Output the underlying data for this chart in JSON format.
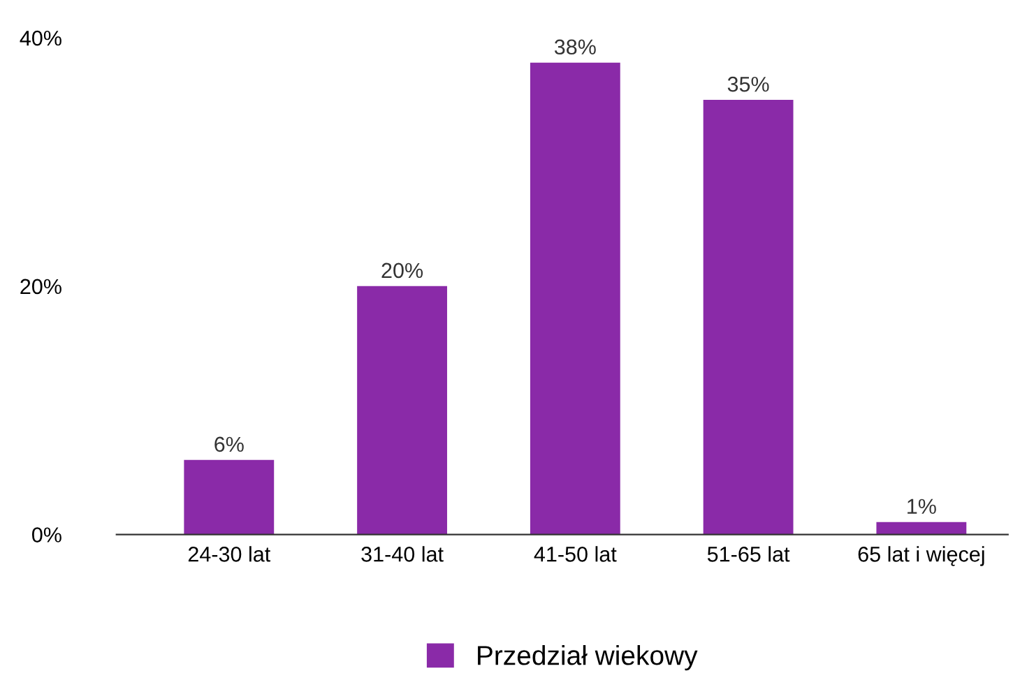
{
  "chart_data": {
    "type": "bar",
    "categories": [
      "24-30 lat",
      "31-40 lat",
      "41-50 lat",
      "51-65 lat",
      "65 lat i więcej"
    ],
    "series": [
      {
        "name": "Przedział wiekowy",
        "color": "#8a2aa8",
        "values": [
          6,
          20,
          38,
          35,
          1
        ]
      }
    ],
    "value_labels": [
      "6%",
      "20%",
      "38%",
      "35%",
      "1%"
    ],
    "ylim": [
      0,
      40
    ],
    "yticks": [
      {
        "value": 0,
        "label": "0%"
      },
      {
        "value": 20,
        "label": "20%"
      },
      {
        "value": 40,
        "label": "40%"
      }
    ],
    "grid": false,
    "legend": "bottom"
  }
}
